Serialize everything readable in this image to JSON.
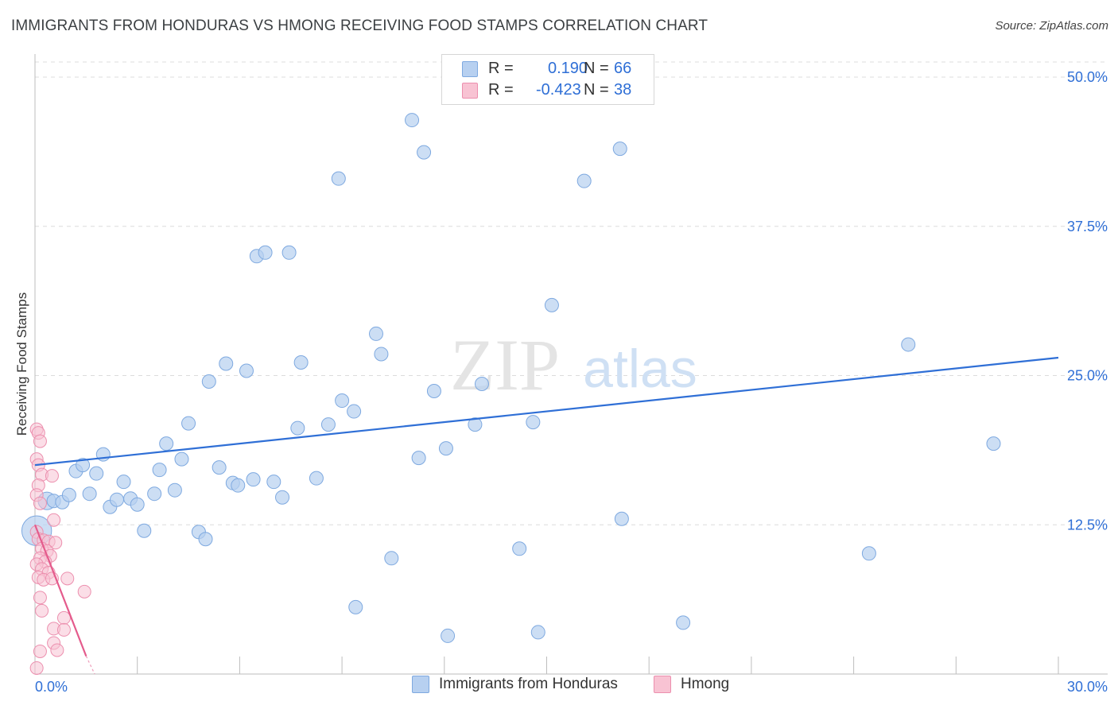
{
  "header": {
    "title": "IMMIGRANTS FROM HONDURAS VS HMONG RECEIVING FOOD STAMPS CORRELATION CHART",
    "source": "Source: ZipAtlas.com"
  },
  "watermark": {
    "zip": "ZIP",
    "atlas": "atlas"
  },
  "legend": {
    "series1": {
      "r_label": "R =",
      "r_value": "0.190",
      "n_label": "N =",
      "n_value": "66"
    },
    "series2": {
      "r_label": "R =",
      "r_value": "-0.423",
      "n_label": "N =",
      "n_value": "38"
    }
  },
  "colors": {
    "blue_fill": "#b7d0f0",
    "blue_stroke": "#7ea9e0",
    "blue_line": "#2f6fd6",
    "pink_fill": "#f8c3d3",
    "pink_stroke": "#ec8fae",
    "pink_line": "#e45b8c",
    "grid": "#dcdcdc",
    "tick_text": "#2f6fd6"
  },
  "chart_data": {
    "type": "scatter",
    "title": "IMMIGRANTS FROM HONDURAS VS HMONG RECEIVING FOOD STAMPS CORRELATION CHART",
    "xlabel": "",
    "ylabel": "Receiving Food Stamps",
    "xlim": [
      0,
      30
    ],
    "ylim": [
      0,
      50
    ],
    "x_tick_labels": [
      "0.0%",
      "30.0%"
    ],
    "y_ticks": [
      12.5,
      25.0,
      37.5,
      50.0
    ],
    "y_tick_labels": [
      "12.5%",
      "25.0%",
      "37.5%",
      "50.0%"
    ],
    "grid": true,
    "legend_position": "top-center",
    "series": [
      {
        "name": "Immigrants from Honduras",
        "color": "#b7d0f0",
        "trend": {
          "x": [
            0,
            30
          ],
          "y": [
            17.5,
            26.5
          ]
        },
        "points": [
          [
            0.05,
            12.0,
            2.2
          ],
          [
            0.35,
            14.5,
            1.3
          ],
          [
            0.55,
            14.5,
            1.0
          ],
          [
            0.8,
            14.4,
            1.0
          ],
          [
            1.0,
            15.0,
            1.0
          ],
          [
            1.2,
            17.0,
            1.0
          ],
          [
            1.4,
            17.5,
            1.0
          ],
          [
            1.6,
            15.1,
            1.0
          ],
          [
            1.8,
            16.8,
            1.0
          ],
          [
            2.0,
            18.4,
            1.0
          ],
          [
            2.2,
            14.0,
            1.0
          ],
          [
            2.4,
            14.6,
            1.0
          ],
          [
            2.6,
            16.1,
            1.0
          ],
          [
            2.8,
            14.7,
            1.0
          ],
          [
            3.0,
            14.2,
            1.0
          ],
          [
            3.2,
            12.0,
            1.0
          ],
          [
            3.5,
            15.1,
            1.0
          ],
          [
            3.65,
            17.1,
            1.0
          ],
          [
            3.85,
            19.3,
            1.0
          ],
          [
            4.1,
            15.4,
            1.0
          ],
          [
            4.3,
            18.0,
            1.0
          ],
          [
            4.5,
            21.0,
            1.0
          ],
          [
            4.8,
            11.9,
            1.0
          ],
          [
            5.0,
            11.3,
            1.0
          ],
          [
            5.1,
            24.5,
            1.0
          ],
          [
            5.4,
            17.3,
            1.0
          ],
          [
            5.6,
            26.0,
            1.0
          ],
          [
            5.8,
            16.0,
            1.0
          ],
          [
            5.95,
            15.8,
            1.0
          ],
          [
            6.2,
            25.4,
            1.0
          ],
          [
            6.4,
            16.3,
            1.0
          ],
          [
            6.5,
            35.0,
            1.0
          ],
          [
            6.75,
            35.3,
            1.0
          ],
          [
            7.0,
            16.1,
            1.0
          ],
          [
            7.25,
            14.8,
            1.0
          ],
          [
            7.45,
            35.3,
            1.0
          ],
          [
            7.7,
            20.6,
            1.0
          ],
          [
            7.8,
            26.1,
            1.0
          ],
          [
            8.25,
            16.4,
            1.0
          ],
          [
            8.6,
            20.9,
            1.0
          ],
          [
            8.9,
            41.5,
            1.0
          ],
          [
            9.0,
            22.9,
            1.0
          ],
          [
            9.35,
            22.0,
            1.0
          ],
          [
            9.4,
            5.6,
            1.0
          ],
          [
            10.0,
            28.5,
            1.0
          ],
          [
            10.15,
            26.8,
            1.0
          ],
          [
            10.45,
            9.7,
            1.0
          ],
          [
            11.25,
            18.1,
            1.0
          ],
          [
            11.05,
            46.4,
            1.0
          ],
          [
            11.4,
            43.7,
            1.0
          ],
          [
            11.7,
            23.7,
            1.0
          ],
          [
            12.05,
            18.9,
            1.0
          ],
          [
            12.1,
            3.2,
            1.0
          ],
          [
            12.9,
            20.9,
            1.0
          ],
          [
            13.1,
            24.3,
            1.0
          ],
          [
            14.2,
            10.5,
            1.0
          ],
          [
            14.6,
            21.1,
            1.0
          ],
          [
            14.75,
            3.5,
            1.0
          ],
          [
            15.15,
            30.9,
            1.0
          ],
          [
            16.1,
            41.3,
            1.0
          ],
          [
            17.15,
            44.0,
            1.0
          ],
          [
            17.2,
            13.0,
            1.0
          ],
          [
            19.0,
            4.3,
            1.0
          ],
          [
            24.45,
            10.1,
            1.0
          ],
          [
            25.6,
            27.6,
            1.0
          ],
          [
            28.1,
            19.3,
            1.0
          ]
        ]
      },
      {
        "name": "Hmong",
        "color": "#f8c3d3",
        "trend": {
          "x": [
            0,
            1.5
          ],
          "y": [
            12.5,
            1.5
          ]
        },
        "trend_dashed": {
          "x": [
            1.5,
            1.75
          ],
          "y": [
            1.5,
            -0.3
          ]
        },
        "points": [
          [
            0.05,
            20.5
          ],
          [
            0.1,
            20.2
          ],
          [
            0.15,
            19.5
          ],
          [
            0.05,
            18.0
          ],
          [
            0.1,
            17.5
          ],
          [
            0.2,
            16.7
          ],
          [
            0.5,
            16.6
          ],
          [
            0.1,
            15.8
          ],
          [
            0.05,
            15.0
          ],
          [
            0.15,
            14.3
          ],
          [
            0.55,
            12.9
          ],
          [
            0.05,
            11.9
          ],
          [
            0.1,
            11.3
          ],
          [
            0.25,
            11.2
          ],
          [
            0.4,
            11.1
          ],
          [
            0.6,
            11.0
          ],
          [
            0.2,
            10.5
          ],
          [
            0.35,
            10.3
          ],
          [
            0.45,
            9.9
          ],
          [
            0.15,
            9.7
          ],
          [
            0.3,
            9.4
          ],
          [
            0.05,
            9.2
          ],
          [
            0.2,
            8.8
          ],
          [
            0.4,
            8.5
          ],
          [
            0.1,
            8.1
          ],
          [
            0.25,
            7.9
          ],
          [
            0.5,
            8.0
          ],
          [
            0.95,
            8.0
          ],
          [
            1.45,
            6.9
          ],
          [
            0.15,
            6.4
          ],
          [
            0.2,
            5.3
          ],
          [
            0.85,
            4.7
          ],
          [
            0.55,
            3.8
          ],
          [
            0.85,
            3.7
          ],
          [
            0.55,
            2.6
          ],
          [
            0.65,
            2.0
          ],
          [
            0.15,
            1.9
          ],
          [
            0.05,
            0.5
          ]
        ]
      }
    ]
  },
  "bottom_legend": {
    "series1_label": "Immigrants from Honduras",
    "series2_label": "Hmong"
  }
}
